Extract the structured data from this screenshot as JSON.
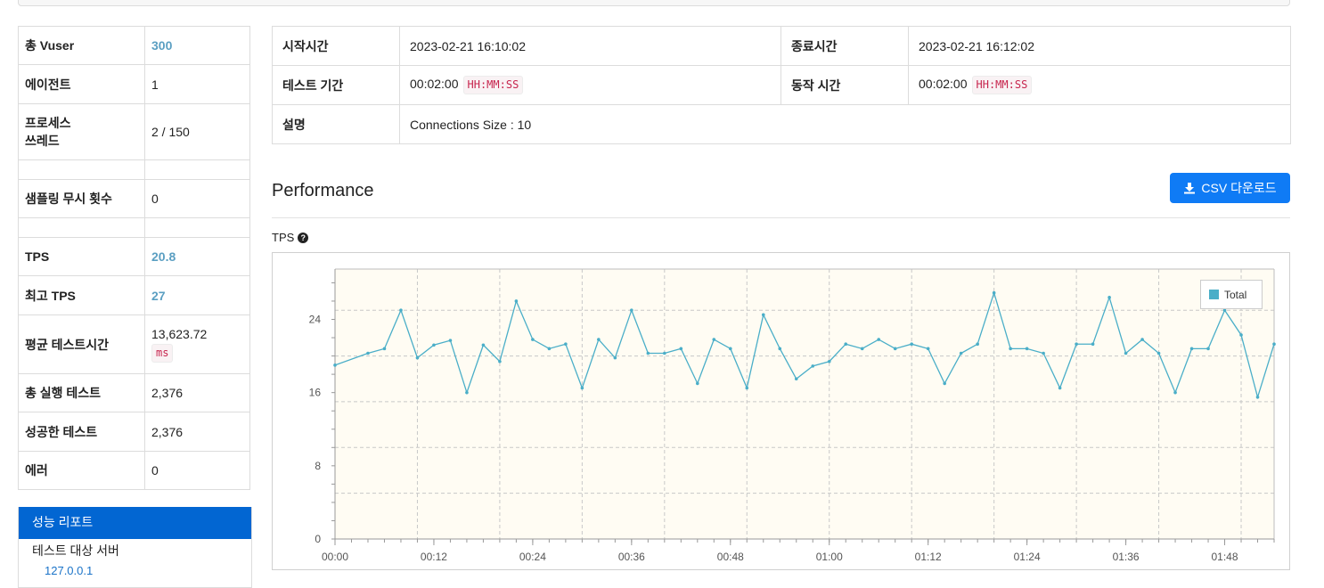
{
  "summary": [
    {
      "label": "총 Vuser",
      "value": "300",
      "highlight": true
    },
    {
      "label": "에이전트",
      "value": "1"
    },
    {
      "label": "프로세스\n쓰레드",
      "value": "2 / 150"
    },
    {
      "label": "",
      "value": ""
    },
    {
      "label": "샘플링 무시 횟수",
      "value": "0"
    },
    {
      "label": "",
      "value": ""
    },
    {
      "label": "TPS",
      "value": "20.8",
      "highlight": true
    },
    {
      "label": "최고 TPS",
      "value": "27",
      "highlight": true
    },
    {
      "label": "평균 테스트시간",
      "value": "13,623.72",
      "unit": "ms"
    },
    {
      "label": "총 실행 테스트",
      "value": "2,376"
    },
    {
      "label": "성공한 테스트",
      "value": "2,376"
    },
    {
      "label": "에러",
      "value": "0"
    }
  ],
  "menu": {
    "header": "성능 리포트",
    "item": "테스트 대상 서버",
    "sub": "127.0.0.1"
  },
  "test_info": {
    "start_label": "시작시간",
    "start_value": "2023-02-21 16:10:02",
    "end_label": "종료시간",
    "end_value": "2023-02-21 16:12:02",
    "duration_label": "테스트 기간",
    "duration_value": "00:02:00",
    "duration_unit": "HH:MM:SS",
    "run_label": "동작 시간",
    "run_value": "00:02:00",
    "run_unit": "HH:MM:SS",
    "desc_label": "설명",
    "desc_value": "Connections Size : 10"
  },
  "performance": {
    "title": "Performance",
    "csv_button": "CSV 다운로드",
    "tps_label": "TPS"
  },
  "colors": {
    "line": "#4aaec8",
    "accent": "#0f7bf5",
    "menu": "#0266d2",
    "plot_bg": "#fffcf3"
  },
  "chart_data": {
    "type": "line",
    "title": "",
    "xlabel": "",
    "ylabel": "",
    "ylim": [
      0,
      29.5
    ],
    "xlim": [
      0,
      114
    ],
    "yticks": [
      0,
      8,
      16,
      24
    ],
    "xtick_values": [
      0,
      12,
      24,
      36,
      48,
      60,
      72,
      84,
      96,
      108
    ],
    "xtick_labels": [
      "00:00",
      "00:12",
      "00:24",
      "00:36",
      "00:48",
      "01:00",
      "01:12",
      "01:24",
      "01:36",
      "01:48"
    ],
    "grid": true,
    "legend": "top-right",
    "series": [
      {
        "name": "Total",
        "x": [
          0,
          4,
          6,
          8,
          10,
          12,
          14,
          16,
          18,
          20,
          22,
          24,
          26,
          28,
          30,
          32,
          34,
          36,
          38,
          40,
          42,
          44,
          46,
          48,
          50,
          52,
          54,
          56,
          58,
          60,
          62,
          64,
          66,
          68,
          70,
          72,
          74,
          76,
          78,
          80,
          82,
          84,
          86,
          88,
          90,
          92,
          94,
          96,
          98,
          100,
          102,
          104,
          106,
          108,
          110,
          112,
          114
        ],
        "values": [
          19,
          20.3,
          20.8,
          25,
          19.8,
          21.2,
          21.7,
          16,
          21.2,
          19.4,
          26,
          21.8,
          20.8,
          21.3,
          16.5,
          21.8,
          19.8,
          25,
          20.3,
          20.3,
          20.8,
          17,
          21.8,
          20.8,
          16.5,
          24.5,
          20.8,
          17.5,
          18.9,
          19.4,
          21.3,
          20.8,
          21.8,
          20.8,
          21.3,
          20.8,
          17,
          20.3,
          21.3,
          26.9,
          20.8,
          20.8,
          20.3,
          16.5,
          21.3,
          21.3,
          26.4,
          20.3,
          21.8,
          20.3,
          16,
          20.8,
          20.8,
          25,
          22.3,
          15.5,
          21.3
        ]
      }
    ]
  }
}
